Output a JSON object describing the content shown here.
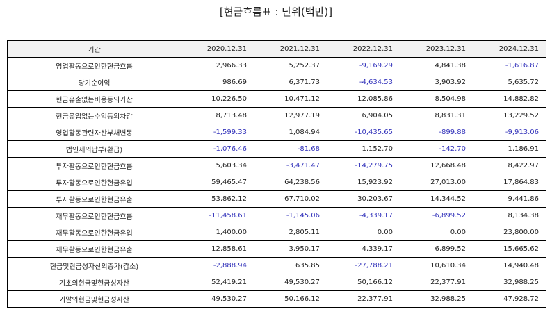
{
  "title": "[현금흐름표 : 단위(백만)]",
  "colors": {
    "negative": "#3333bb",
    "positive": "#222222",
    "header_bg": "#f2f2f2"
  },
  "table": {
    "headers": [
      "기간",
      "2020.12.31",
      "2021.12.31",
      "2022.12.31",
      "2023.12.31",
      "2024.12.31"
    ],
    "rows": [
      {
        "label": "영업활동으로인한현금흐름",
        "values": [
          "2,966.33",
          "5,252.37",
          "-9,169.29",
          "4,841.38",
          "-1,616.87"
        ]
      },
      {
        "label": "당기순이익",
        "values": [
          "986.69",
          "6,371.73",
          "-4,634.53",
          "3,903.92",
          "5,635.72"
        ]
      },
      {
        "label": "현금유출없는비용등의가산",
        "values": [
          "10,226.50",
          "10,471.12",
          "12,085.86",
          "8,504.98",
          "14,882.82"
        ]
      },
      {
        "label": "현금유입없는수익등의차감",
        "values": [
          "8,713.48",
          "12,977.19",
          "6,904.05",
          "8,831.31",
          "13,229.52"
        ]
      },
      {
        "label": "영업활동관련자산부채변동",
        "values": [
          "-1,599.33",
          "1,084.94",
          "-10,435.65",
          "-899.88",
          "-9,913.06"
        ]
      },
      {
        "label": "법인세의납부(환급)",
        "values": [
          "-1,076.46",
          "-81.68",
          "1,152.70",
          "-142.70",
          "1,186.91"
        ]
      },
      {
        "label": "투자활동으로인한현금흐름",
        "values": [
          "5,603.34",
          "-3,471.47",
          "-14,279.75",
          "12,668.48",
          "8,422.97"
        ]
      },
      {
        "label": "투자활동으로인한현금유입",
        "values": [
          "59,465.47",
          "64,238.56",
          "15,923.92",
          "27,013.00",
          "17,864.83"
        ]
      },
      {
        "label": "투자활동으로인한현금유출",
        "values": [
          "53,862.12",
          "67,710.02",
          "30,203.67",
          "14,344.52",
          "9,441.86"
        ]
      },
      {
        "label": "재무활동으로인한현금흐름",
        "values": [
          "-11,458.61",
          "-1,145.06",
          "-4,339.17",
          "-6,899.52",
          "8,134.38"
        ]
      },
      {
        "label": "재무활동으로인한현금유입",
        "values": [
          "1,400.00",
          "2,805.11",
          "0.00",
          "0.00",
          "23,800.00"
        ]
      },
      {
        "label": "재무활동으로인한현금유출",
        "values": [
          "12,858.61",
          "3,950.17",
          "4,339.17",
          "6,899.52",
          "15,665.62"
        ]
      },
      {
        "label": "현금및현금성자산의증가(감소)",
        "values": [
          "-2,888.94",
          "635.85",
          "-27,788.21",
          "10,610.34",
          "14,940.48"
        ]
      },
      {
        "label": "기초의현금및현금성자산",
        "values": [
          "52,419.21",
          "49,530.27",
          "50,166.12",
          "22,377.91",
          "32,988.25"
        ]
      },
      {
        "label": "기말의현금및현금성자산",
        "values": [
          "49,530.27",
          "50,166.12",
          "22,377.91",
          "32,988.25",
          "47,928.72"
        ]
      }
    ]
  }
}
